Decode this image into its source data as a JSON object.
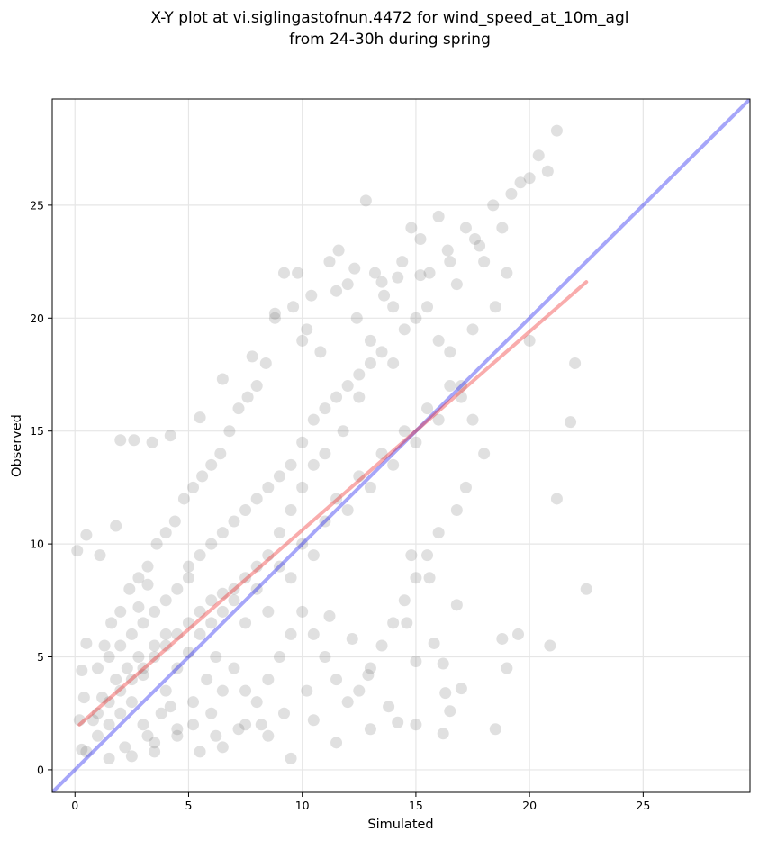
{
  "chart_data": {
    "type": "scatter",
    "title_line1": "X-Y plot at vi.siglingastofnun.4472 for wind_speed_at_10m_agl",
    "title_line2": "from 24-30h during spring",
    "xlabel": "Simulated",
    "ylabel": "Observed",
    "xlim": [
      -1,
      29.7
    ],
    "ylim": [
      -1,
      29.7
    ],
    "xticks": [
      0,
      5,
      10,
      15,
      20,
      25
    ],
    "yticks": [
      0,
      5,
      10,
      15,
      20,
      25
    ],
    "grid": true,
    "colors": {
      "points": "#666666",
      "identity_line": "#0000ee",
      "fit_line": "#ee1111",
      "grid": "#e6e6e6"
    },
    "identity_line": {
      "x": [
        -1,
        29.7
      ],
      "y": [
        -1,
        29.7
      ]
    },
    "fit_line": {
      "x": [
        0.2,
        22.5
      ],
      "y": [
        2.0,
        21.6
      ]
    },
    "points": [
      [
        1.0,
        1.5
      ],
      [
        1.5,
        2.0
      ],
      [
        2.0,
        2.5
      ],
      [
        2.2,
        1.0
      ],
      [
        2.5,
        3.0
      ],
      [
        3.0,
        2.0
      ],
      [
        3.2,
        1.5
      ],
      [
        3.5,
        1.2
      ],
      [
        3.8,
        2.5
      ],
      [
        4.0,
        3.5
      ],
      [
        4.2,
        2.8
      ],
      [
        4.5,
        1.8
      ],
      [
        1.2,
        3.2
      ],
      [
        1.8,
        4.0
      ],
      [
        2.3,
        4.5
      ],
      [
        2.8,
        5.0
      ],
      [
        3.0,
        4.2
      ],
      [
        3.5,
        5.5
      ],
      [
        4.0,
        6.0
      ],
      [
        4.5,
        4.5
      ],
      [
        5.0,
        5.2
      ],
      [
        5.5,
        6.0
      ],
      [
        6.0,
        6.5
      ],
      [
        5.2,
        3.0
      ],
      [
        5.8,
        4.0
      ],
      [
        6.2,
        5.0
      ],
      [
        6.5,
        7.0
      ],
      [
        7.0,
        7.5
      ],
      [
        7.5,
        6.5
      ],
      [
        8.0,
        8.0
      ],
      [
        8.5,
        7.0
      ],
      [
        9.0,
        9.0
      ],
      [
        9.5,
        8.5
      ],
      [
        10.0,
        10.0
      ],
      [
        10.5,
        9.5
      ],
      [
        11.0,
        11.0
      ],
      [
        11.5,
        12.0
      ],
      [
        12.0,
        11.5
      ],
      [
        12.5,
        13.0
      ],
      [
        13.0,
        12.5
      ],
      [
        13.5,
        14.0
      ],
      [
        14.0,
        13.5
      ],
      [
        14.5,
        15.0
      ],
      [
        15.0,
        14.5
      ],
      [
        15.5,
        16.0
      ],
      [
        16.0,
        15.5
      ],
      [
        16.5,
        17.0
      ],
      [
        17.0,
        16.5
      ],
      [
        0.5,
        0.8
      ],
      [
        0.8,
        2.2
      ],
      [
        1.0,
        4.5
      ],
      [
        1.3,
        5.5
      ],
      [
        1.6,
        6.5
      ],
      [
        2.0,
        7.0
      ],
      [
        2.4,
        8.0
      ],
      [
        2.8,
        8.5
      ],
      [
        3.2,
        9.0
      ],
      [
        3.6,
        10.0
      ],
      [
        4.0,
        10.5
      ],
      [
        4.4,
        11.0
      ],
      [
        4.8,
        12.0
      ],
      [
        5.2,
        12.5
      ],
      [
        5.6,
        13.0
      ],
      [
        6.0,
        13.5
      ],
      [
        6.4,
        14.0
      ],
      [
        6.8,
        15.0
      ],
      [
        7.2,
        16.0
      ],
      [
        7.6,
        16.5
      ],
      [
        8.0,
        17.0
      ],
      [
        8.4,
        18.0
      ],
      [
        8.8,
        20.0
      ],
      [
        9.2,
        22.0
      ],
      [
        9.6,
        20.5
      ],
      [
        10.0,
        19.0
      ],
      [
        10.4,
        21.0
      ],
      [
        10.8,
        18.5
      ],
      [
        11.2,
        22.5
      ],
      [
        11.6,
        23.0
      ],
      [
        12.0,
        21.5
      ],
      [
        12.4,
        20.0
      ],
      [
        12.8,
        25.2
      ],
      [
        13.2,
        22.0
      ],
      [
        13.6,
        21.0
      ],
      [
        14.0,
        20.5
      ],
      [
        14.4,
        22.5
      ],
      [
        14.8,
        24.0
      ],
      [
        15.2,
        23.5
      ],
      [
        15.6,
        22.0
      ],
      [
        16.0,
        24.5
      ],
      [
        16.4,
        23.0
      ],
      [
        16.8,
        21.5
      ],
      [
        17.2,
        24.0
      ],
      [
        17.6,
        23.5
      ],
      [
        18.0,
        22.5
      ],
      [
        18.4,
        25.0
      ],
      [
        18.8,
        24.0
      ],
      [
        19.2,
        25.5
      ],
      [
        19.6,
        26.0
      ],
      [
        20.0,
        26.2
      ],
      [
        20.4,
        27.2
      ],
      [
        20.8,
        26.5
      ],
      [
        21.2,
        28.3
      ],
      [
        20.0,
        19.0
      ],
      [
        19.0,
        22.0
      ],
      [
        18.5,
        20.5
      ],
      [
        17.5,
        19.5
      ],
      [
        21.8,
        15.4
      ],
      [
        22.0,
        18.0
      ],
      [
        21.2,
        12.0
      ],
      [
        22.5,
        8.0
      ],
      [
        20.9,
        5.5
      ],
      [
        19.5,
        6.0
      ],
      [
        18.8,
        5.8
      ],
      [
        19.0,
        4.5
      ],
      [
        18.5,
        1.8
      ],
      [
        16.2,
        1.6
      ],
      [
        15.0,
        2.0
      ],
      [
        14.2,
        2.1
      ],
      [
        13.0,
        1.8
      ],
      [
        11.5,
        1.2
      ],
      [
        10.5,
        2.2
      ],
      [
        9.5,
        0.5
      ],
      [
        8.5,
        1.5
      ],
      [
        7.5,
        2.0
      ],
      [
        6.5,
        1.0
      ],
      [
        5.5,
        0.8
      ],
      [
        4.5,
        1.5
      ],
      [
        3.5,
        0.8
      ],
      [
        2.5,
        0.6
      ],
      [
        1.5,
        0.5
      ],
      [
        0.3,
        0.9
      ],
      [
        0.2,
        2.2
      ],
      [
        0.4,
        3.2
      ],
      [
        0.3,
        4.4
      ],
      [
        0.5,
        5.6
      ],
      [
        0.1,
        9.7
      ],
      [
        0.5,
        10.4
      ],
      [
        1.1,
        9.5
      ],
      [
        1.8,
        10.8
      ],
      [
        2.0,
        14.6
      ],
      [
        2.6,
        14.6
      ],
      [
        3.4,
        14.5
      ],
      [
        4.2,
        14.8
      ],
      [
        5.5,
        15.6
      ],
      [
        6.5,
        17.3
      ],
      [
        7.8,
        18.3
      ],
      [
        8.8,
        20.2
      ],
      [
        9.8,
        22.0
      ],
      [
        10.2,
        19.5
      ],
      [
        11.5,
        21.2
      ],
      [
        12.3,
        22.2
      ],
      [
        13.5,
        21.6
      ],
      [
        14.2,
        21.8
      ],
      [
        15.2,
        21.9
      ],
      [
        16.5,
        22.5
      ],
      [
        17.8,
        23.2
      ],
      [
        13.0,
        18.0
      ],
      [
        12.5,
        16.5
      ],
      [
        11.8,
        15.0
      ],
      [
        11.0,
        14.0
      ],
      [
        10.5,
        13.5
      ],
      [
        10.0,
        12.5
      ],
      [
        9.5,
        11.5
      ],
      [
        9.0,
        10.5
      ],
      [
        8.5,
        9.5
      ],
      [
        8.0,
        9.0
      ],
      [
        7.5,
        8.5
      ],
      [
        7.0,
        8.0
      ],
      [
        6.5,
        7.8
      ],
      [
        6.0,
        7.5
      ],
      [
        5.5,
        7.0
      ],
      [
        5.0,
        6.5
      ],
      [
        4.5,
        6.0
      ],
      [
        4.0,
        5.5
      ],
      [
        3.5,
        5.0
      ],
      [
        3.0,
        4.5
      ],
      [
        2.5,
        4.0
      ],
      [
        2.0,
        3.5
      ],
      [
        1.5,
        3.0
      ],
      [
        1.0,
        2.5
      ],
      [
        5.0,
        9.0
      ],
      [
        5.5,
        9.5
      ],
      [
        6.0,
        10.0
      ],
      [
        6.5,
        10.5
      ],
      [
        7.0,
        11.0
      ],
      [
        7.5,
        11.5
      ],
      [
        8.0,
        12.0
      ],
      [
        8.5,
        12.5
      ],
      [
        9.0,
        13.0
      ],
      [
        9.5,
        13.5
      ],
      [
        10.0,
        14.5
      ],
      [
        10.5,
        15.5
      ],
      [
        11.0,
        16.0
      ],
      [
        11.5,
        16.5
      ],
      [
        12.0,
        17.0
      ],
      [
        12.5,
        17.5
      ],
      [
        13.0,
        19.0
      ],
      [
        13.5,
        18.5
      ],
      [
        14.0,
        18.0
      ],
      [
        14.5,
        19.5
      ],
      [
        15.0,
        20.0
      ],
      [
        15.5,
        20.5
      ],
      [
        16.0,
        19.0
      ],
      [
        16.5,
        18.5
      ],
      [
        17.0,
        17.0
      ],
      [
        17.5,
        15.5
      ],
      [
        18.0,
        14.0
      ],
      [
        17.2,
        12.5
      ],
      [
        16.8,
        11.5
      ],
      [
        16.0,
        10.5
      ],
      [
        15.5,
        9.5
      ],
      [
        15.0,
        8.5
      ],
      [
        14.5,
        7.5
      ],
      [
        14.0,
        6.5
      ],
      [
        13.5,
        5.5
      ],
      [
        13.0,
        4.5
      ],
      [
        12.5,
        3.5
      ],
      [
        12.0,
        3.0
      ],
      [
        11.5,
        4.0
      ],
      [
        11.0,
        5.0
      ],
      [
        10.5,
        6.0
      ],
      [
        10.0,
        7.0
      ],
      [
        9.5,
        6.0
      ],
      [
        9.0,
        5.0
      ],
      [
        8.5,
        4.0
      ],
      [
        8.0,
        3.0
      ],
      [
        7.5,
        3.5
      ],
      [
        7.0,
        4.5
      ],
      [
        6.5,
        3.5
      ],
      [
        6.0,
        2.5
      ],
      [
        3.0,
        6.5
      ],
      [
        3.5,
        7.0
      ],
      [
        4.0,
        7.5
      ],
      [
        4.5,
        8.0
      ],
      [
        5.0,
        8.5
      ],
      [
        2.5,
        6.0
      ],
      [
        2.0,
        5.5
      ],
      [
        1.5,
        5.0
      ],
      [
        3.2,
        8.2
      ],
      [
        2.8,
        7.2
      ],
      [
        16.2,
        4.7
      ],
      [
        16.8,
        7.3
      ],
      [
        17.0,
        3.6
      ],
      [
        16.3,
        3.4
      ],
      [
        16.5,
        2.6
      ],
      [
        15.8,
        5.6
      ],
      [
        15.0,
        4.8
      ],
      [
        14.6,
        6.5
      ],
      [
        14.8,
        9.5
      ],
      [
        15.6,
        8.5
      ],
      [
        13.8,
        2.8
      ],
      [
        12.9,
        4.2
      ],
      [
        12.2,
        5.8
      ],
      [
        11.2,
        6.8
      ],
      [
        10.2,
        3.5
      ],
      [
        9.2,
        2.5
      ],
      [
        8.2,
        2.0
      ],
      [
        7.2,
        1.8
      ],
      [
        6.2,
        1.5
      ],
      [
        5.2,
        2.0
      ]
    ]
  }
}
